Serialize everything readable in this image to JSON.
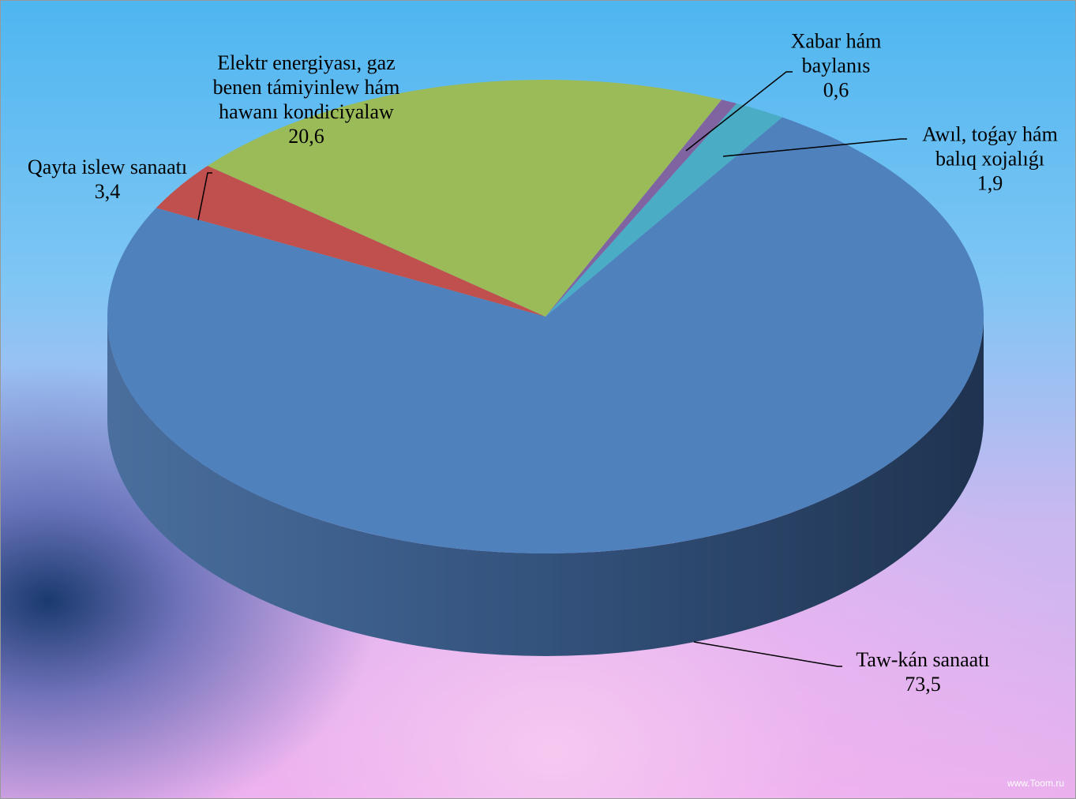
{
  "chart_data": {
    "type": "pie",
    "style": "3d",
    "categories": [
      "Taw-kán sanaatı",
      "Qayta islew sanaatı",
      "Elektr energiyası, gaz benen támiyinlew hám hawanı kondiciyalaw",
      "Xabar hám baylanıs",
      "Awıl, toǵay hám balıq xojalıǵı"
    ],
    "values": [
      73.5,
      3.4,
      20.6,
      0.6,
      1.9
    ],
    "value_labels": [
      "73,5",
      "3,4",
      "20,6",
      "0,6",
      "1,9"
    ],
    "colors": [
      "#4f81bd",
      "#c0504d",
      "#9bbb59",
      "#8064a2",
      "#4bacc6"
    ],
    "watermark": "www.Toom.ru"
  }
}
